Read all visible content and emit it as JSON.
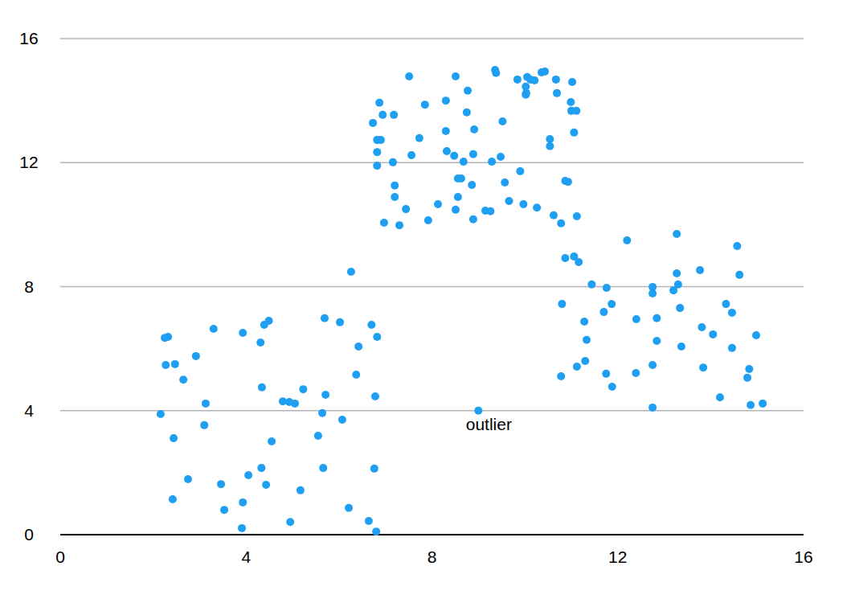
{
  "chart_data": {
    "type": "scatter",
    "x": [
      2.16,
      2.25,
      2.32,
      2.27,
      2.47,
      2.44,
      2.42,
      2.65,
      2.75,
      2.92,
      3.13,
      3.1,
      3.3,
      3.46,
      3.53,
      3.93,
      3.93,
      3.91,
      4.05,
      4.31,
      4.39,
      4.49,
      4.34,
      4.33,
      4.43,
      4.55,
      4.79,
      4.93,
      5.05,
      4.95,
      5.23,
      5.17,
      5.55,
      5.64,
      5.69,
      5.71,
      5.66,
      6.02,
      6.07,
      6.26,
      6.21,
      6.42,
      6.37,
      6.64,
      6.7,
      6.82,
      6.78,
      6.76,
      6.8,
      6.73,
      6.87,
      6.94,
      6.82,
      6.9,
      6.82,
      6.82,
      6.97,
      7.18,
      7.16,
      7.2,
      7.2,
      7.3,
      7.44,
      7.51,
      7.56,
      7.73,
      7.85,
      7.92,
      8.13,
      8.3,
      8.3,
      8.32,
      8.51,
      8.48,
      8.51,
      8.56,
      8.63,
      8.56,
      8.68,
      8.75,
      8.77,
      8.86,
      8.89,
      8.91,
      8.89,
      9.15,
      9.26,
      9.29,
      9.36,
      9.38,
      9.48,
      9.52,
      9.57,
      9.66,
      9.9,
      9.84,
      9.97,
      10.02,
      10.03,
      10.02,
      10.05,
      10.12,
      10.21,
      10.26,
      10.36,
      10.43,
      10.54,
      10.54,
      10.62,
      10.67,
      10.69,
      10.78,
      10.87,
      10.93,
      10.99,
      11.02,
      11.0,
      11.11,
      11.06,
      11.12,
      10.87,
      11.06,
      11.16,
      10.8,
      10.78,
      11.28,
      11.33,
      11.12,
      11.3,
      11.44,
      11.76,
      11.7,
      11.87,
      11.75,
      11.88,
      12.2,
      12.39,
      12.4,
      12.75,
      12.75,
      12.75,
      12.75,
      12.84,
      12.84,
      13.27,
      13.2,
      13.27,
      13.3,
      13.34,
      13.37,
      13.77,
      13.81,
      13.84,
      14.05,
      14.2,
      14.33,
      14.46,
      14.46,
      14.57,
      14.62,
      14.79,
      14.83,
      14.86,
      14.98,
      15.12,
      9.0
    ],
    "values": [
      3.89,
      6.35,
      6.38,
      5.47,
      5.5,
      3.11,
      1.14,
      5.0,
      1.79,
      5.76,
      4.23,
      3.53,
      6.64,
      1.63,
      0.8,
      6.51,
      1.04,
      0.21,
      1.92,
      6.2,
      6.77,
      6.9,
      4.75,
      2.15,
      1.61,
      3.01,
      4.3,
      4.28,
      4.23,
      0.41,
      4.69,
      1.43,
      3.19,
      3.92,
      6.98,
      4.51,
      2.15,
      6.85,
      3.71,
      8.48,
      0.86,
      6.07,
      5.16,
      0.44,
      6.77,
      6.38,
      4.46,
      2.13,
      0.1,
      13.28,
      13.93,
      13.54,
      12.73,
      12.73,
      12.34,
      11.9,
      10.06,
      13.54,
      12.01,
      11.26,
      10.89,
      9.98,
      10.5,
      14.78,
      12.24,
      12.79,
      13.87,
      10.14,
      10.66,
      14.0,
      13.02,
      12.37,
      14.78,
      12.22,
      10.48,
      11.49,
      11.49,
      10.89,
      12.03,
      13.62,
      14.32,
      11.28,
      12.27,
      13.07,
      10.17,
      10.45,
      10.43,
      12.03,
      14.99,
      14.89,
      12.19,
      13.33,
      11.36,
      10.76,
      11.72,
      14.68,
      10.66,
      14.45,
      14.24,
      14.19,
      14.76,
      14.68,
      14.65,
      10.55,
      14.91,
      14.94,
      12.76,
      12.53,
      10.3,
      14.68,
      14.24,
      10.04,
      11.41,
      11.38,
      13.95,
      14.6,
      13.67,
      13.67,
      12.97,
      10.27,
      8.92,
      8.97,
      8.79,
      7.44,
      5.11,
      6.87,
      6.28,
      5.42,
      5.6,
      8.07,
      7.96,
      7.18,
      7.44,
      5.19,
      4.77,
      9.49,
      5.21,
      6.95,
      7.99,
      7.78,
      5.47,
      4.1,
      6.98,
      6.25,
      9.7,
      7.88,
      8.43,
      8.07,
      7.31,
      6.07,
      8.53,
      6.69,
      5.39,
      6.46,
      4.43,
      7.44,
      6.02,
      7.16,
      9.31,
      8.38,
      5.06,
      5.34,
      4.18,
      6.43,
      4.23,
      4.0
    ],
    "color": "#1e9ff2",
    "xlim": [
      0,
      16
    ],
    "ylim": [
      0,
      16
    ],
    "xticks": [
      0,
      4,
      8,
      12,
      16
    ],
    "yticks": [
      0,
      4,
      8,
      12,
      16
    ],
    "grid": true,
    "annotations": [
      {
        "text": "outlier",
        "x": 9.0,
        "y": 4.0
      }
    ]
  }
}
